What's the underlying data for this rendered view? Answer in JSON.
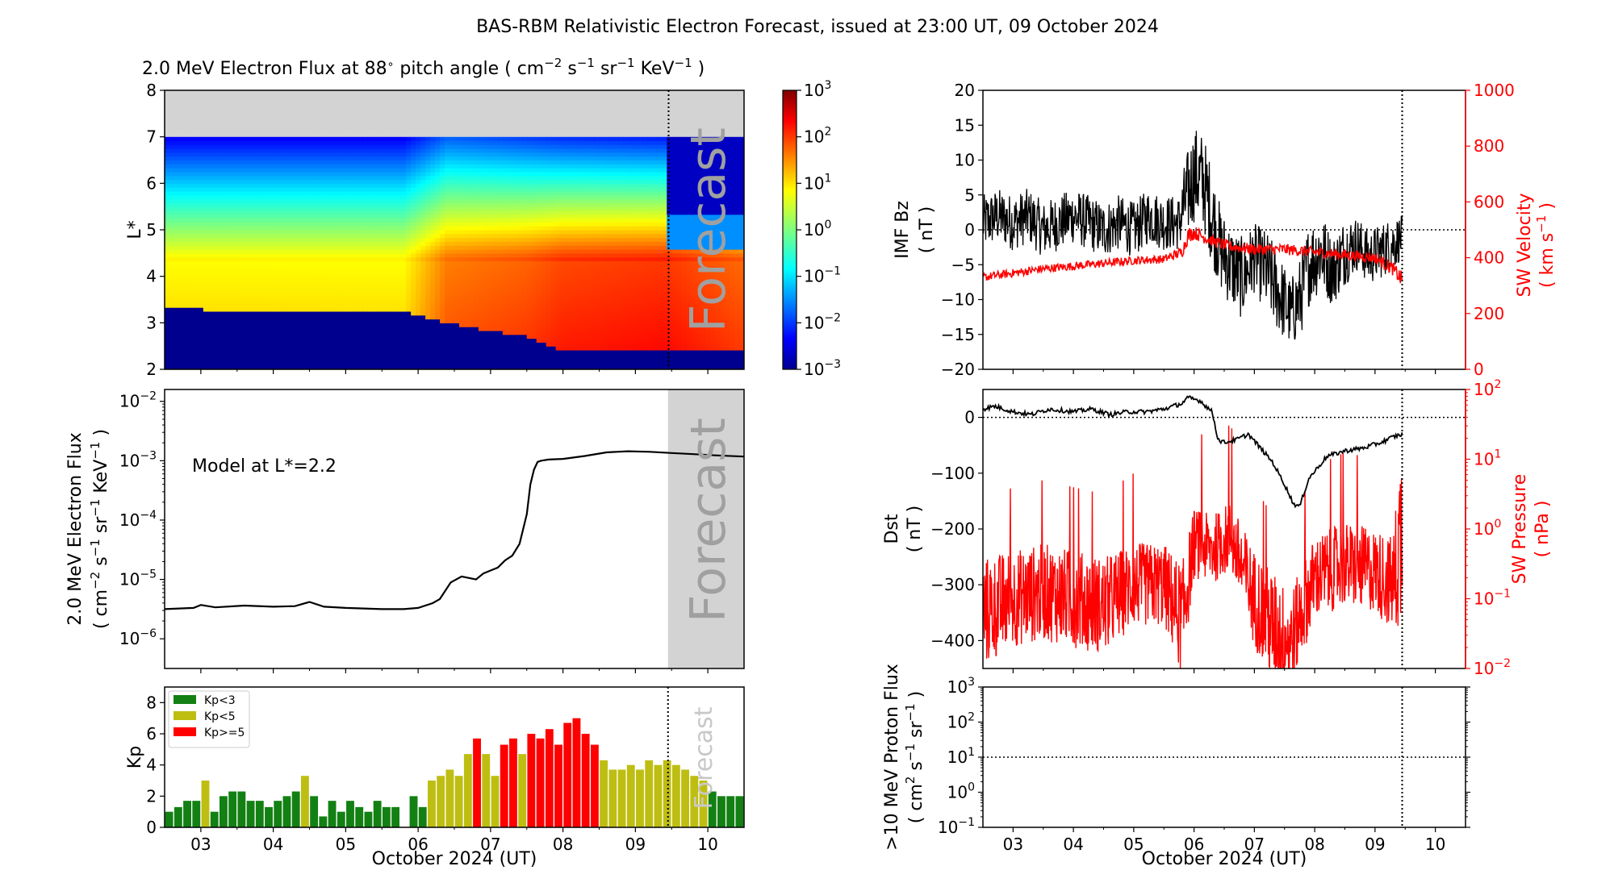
{
  "figure": {
    "title": "BAS-RBM Relativistic Electron Forecast, issued at 23:00 UT, 09 October 2024",
    "forecast_label": "Forecast"
  },
  "chart_data": [
    {
      "id": "flux_spectrogram",
      "type": "heatmap",
      "title_parts": {
        "prefix": "2.0 MeV Electron Flux at 88",
        "deg": "∘",
        "mid": " pitch angle ( cm",
        "e1": "−2",
        "s": " s",
        "e2": "−1",
        "sr": " sr",
        "e3": "−1",
        "kev": " KeV",
        "e4": "−1",
        "suffix": " )"
      },
      "ylabel": "L*",
      "xlim": [
        2.5,
        10.5
      ],
      "ylim": [
        2,
        8
      ],
      "yticks": [
        "2",
        "3",
        "4",
        "5",
        "6",
        "7",
        "8"
      ],
      "xticks": [
        "03",
        "04",
        "05",
        "06",
        "07",
        "08",
        "09",
        "10"
      ],
      "forecast_start": 9.458,
      "colorbar": {
        "label_base": "10",
        "exponents": [
          "3",
          "2",
          "1",
          "0",
          "−1",
          "−2",
          "−3"
        ],
        "min_exp": -3,
        "max_exp": 3
      },
      "data_gap_above_L": 7.0,
      "bands": [
        {
          "day": 2.5,
          "low_edge": 3.3,
          "core_log": 1.0,
          "high_log": -1.6
        },
        {
          "day": 5.8,
          "low_edge": 3.25,
          "core_log": 1.0,
          "high_log": -1.6
        },
        {
          "day": 6.4,
          "low_edge": 3.0,
          "core_log": 1.8,
          "high_log": -1.0
        },
        {
          "day": 7.5,
          "low_edge": 2.7,
          "core_log": 2.0,
          "high_log": -1.2
        },
        {
          "day": 8.0,
          "low_edge": 2.4,
          "core_log": 2.2,
          "high_log": -1.3
        },
        {
          "day": 9.4,
          "low_edge": 2.4,
          "core_log": 2.3,
          "high_log": -1.4
        },
        {
          "day": 10.5,
          "low_edge": 2.4,
          "core_log": 2.0,
          "high_log": -3.0
        }
      ]
    },
    {
      "id": "flux_lstar",
      "type": "line",
      "annotation": "Model at L*=2.2",
      "ylabel_line1_parts": {
        "text": "2.0 MeV Electron Flux"
      },
      "ylabel_line2_parts": {
        "open": "( cm",
        "e1": "−2",
        "s": " s",
        "e2": "−1",
        "sr": " sr",
        "e3": "−1",
        "kev": " KeV",
        "e4": "−1",
        "close": " )"
      },
      "yscale": "log",
      "ylim_exp": [
        -6.5,
        -1.8
      ],
      "ytick_exps": [
        "−6",
        "−5",
        "−4",
        "−3",
        "−2"
      ],
      "ytick_values": [
        -6,
        -5,
        -4,
        -3,
        -2
      ],
      "xlim": [
        2.5,
        10.5
      ],
      "forecast_start": 9.45,
      "x": [
        2.5,
        2.9,
        3.0,
        3.2,
        3.6,
        4.0,
        4.3,
        4.5,
        4.7,
        5.0,
        5.5,
        5.8,
        6.0,
        6.2,
        6.3,
        6.45,
        6.6,
        6.8,
        6.9,
        7.0,
        7.1,
        7.2,
        7.3,
        7.4,
        7.5,
        7.55,
        7.6,
        7.65,
        7.7,
        7.8,
        8.0,
        8.3,
        8.6,
        8.9,
        9.2,
        9.5,
        9.8,
        10.1,
        10.5
      ],
      "y_log": [
        -5.5,
        -5.48,
        -5.43,
        -5.47,
        -5.44,
        -5.46,
        -5.45,
        -5.38,
        -5.46,
        -5.48,
        -5.5,
        -5.5,
        -5.48,
        -5.4,
        -5.33,
        -5.05,
        -4.95,
        -5.0,
        -4.9,
        -4.85,
        -4.8,
        -4.68,
        -4.6,
        -4.4,
        -3.9,
        -3.4,
        -3.15,
        -3.02,
        -3.0,
        -2.98,
        -2.97,
        -2.92,
        -2.86,
        -2.84,
        -2.85,
        -2.87,
        -2.89,
        -2.91,
        -2.93
      ]
    },
    {
      "id": "kp",
      "type": "bar",
      "ylabel": "Kp",
      "ylim": [
        0,
        9
      ],
      "yticks": [
        "0",
        "2",
        "4",
        "6",
        "8"
      ],
      "xlim": [
        2.5,
        10.5
      ],
      "forecast_start": 9.45,
      "bar_width_days": 0.11,
      "legend": [
        {
          "label": "Kp<3",
          "color": "#138013"
        },
        {
          "label": "Kp<5",
          "color": "#bebe12"
        },
        {
          "label": "Kp>=5",
          "color": "#ff0000"
        }
      ],
      "start_day": 2.5625,
      "step_days": 0.125,
      "values": [
        1.0,
        1.3,
        1.7,
        1.7,
        3.0,
        1.0,
        2.0,
        2.3,
        2.3,
        1.7,
        1.7,
        1.3,
        1.7,
        2.0,
        2.3,
        3.3,
        2.0,
        0.7,
        1.7,
        1.0,
        1.7,
        1.3,
        1.0,
        1.7,
        1.3,
        1.3,
        0.0,
        2.0,
        1.3,
        3.0,
        3.3,
        3.7,
        3.3,
        4.7,
        5.7,
        4.7,
        3.3,
        5.3,
        5.7,
        4.7,
        6.0,
        5.7,
        6.3,
        5.3,
        6.7,
        7.0,
        6.0,
        5.3,
        4.3,
        3.7,
        3.7,
        4.0,
        3.7,
        4.3,
        4.0,
        4.3,
        4.0,
        3.7,
        3.3,
        3.0,
        2.3,
        2.0,
        2.0,
        2.0,
        2.0,
        2.0,
        2.0,
        2.0
      ]
    },
    {
      "id": "imf_bz_sw_velocity",
      "type": "line",
      "ylabel_left_lines": [
        "IMF Bz",
        "( nT )"
      ],
      "ylabel_right_line1": "SW Velocity",
      "ylabel_right_parts": {
        "open": "( km s",
        "e": "−1",
        "close": " )"
      },
      "ylim_left": [
        -20,
        20
      ],
      "yticks_left": [
        "−20",
        "−15",
        "−10",
        "−5",
        "0",
        "5",
        "10",
        "15",
        "20"
      ],
      "ylim_right": [
        0,
        1000
      ],
      "yticks_right": [
        "0",
        "200",
        "400",
        "600",
        "800",
        "1000"
      ],
      "xlim": [
        2.5,
        10.5
      ],
      "forecast_start": 9.45,
      "series": [
        {
          "name": "IMF Bz",
          "color": "#000000",
          "axis": "left",
          "days": [
            2.5,
            2.75,
            3.0,
            3.25,
            3.5,
            3.75,
            4.0,
            4.25,
            4.5,
            4.75,
            5.0,
            5.25,
            5.5,
            5.75,
            5.85,
            6.0,
            6.15,
            6.3,
            6.45,
            6.6,
            6.8,
            7.0,
            7.2,
            7.4,
            7.6,
            7.75,
            7.9,
            8.1,
            8.3,
            8.5,
            8.7,
            8.9,
            9.1,
            9.3,
            9.45
          ],
          "mean": [
            1,
            2,
            1,
            2,
            0,
            1,
            2,
            1,
            0,
            1,
            0,
            2,
            1,
            1,
            4,
            8,
            7,
            2,
            -3,
            -5,
            -7,
            -4,
            -6,
            -9,
            -12,
            -10,
            -5,
            -3,
            -6,
            -3,
            -2,
            -4,
            -3,
            -2,
            -1
          ],
          "spread": [
            4,
            4,
            4,
            4,
            4,
            4,
            4,
            4,
            4,
            4,
            4,
            4,
            4,
            4,
            6,
            7,
            7,
            7,
            6,
            6,
            6,
            5,
            6,
            6,
            5,
            6,
            6,
            6,
            5,
            5,
            4,
            4,
            4,
            4,
            3
          ]
        },
        {
          "name": "SW Velocity",
          "color": "#ff0000",
          "axis": "right",
          "days": [
            2.5,
            3.0,
            3.5,
            4.0,
            4.5,
            5.0,
            5.5,
            5.8,
            5.9,
            6.0,
            6.3,
            6.6,
            7.0,
            7.5,
            8.0,
            8.5,
            9.0,
            9.3,
            9.45
          ],
          "mean": [
            330,
            345,
            360,
            370,
            380,
            390,
            395,
            420,
            480,
            490,
            460,
            440,
            430,
            430,
            420,
            410,
            400,
            360,
            320
          ],
          "spread": [
            15,
            15,
            15,
            15,
            15,
            15,
            15,
            20,
            30,
            25,
            20,
            20,
            20,
            20,
            20,
            20,
            20,
            25,
            30
          ]
        }
      ]
    },
    {
      "id": "dst_sw_pressure",
      "type": "line",
      "ylabel_left_lines": [
        "Dst",
        "( nT )"
      ],
      "ylabel_right_lines": [
        "SW Pressure",
        "( nPa )"
      ],
      "ylim_left": [
        -450,
        50
      ],
      "yticks_left": [
        "0",
        "−100",
        "−200",
        "−300",
        "−400"
      ],
      "ylim_right_exp": [
        -2,
        2
      ],
      "ytick_right_exps": [
        "2",
        "1",
        "0",
        "−1",
        "−2"
      ],
      "xlim": [
        2.5,
        10.5
      ],
      "forecast_start": 9.45,
      "series": [
        {
          "name": "Dst",
          "color": "#000000",
          "axis": "left",
          "days": [
            2.5,
            2.7,
            3.0,
            3.3,
            3.6,
            4.0,
            4.3,
            4.6,
            4.9,
            5.2,
            5.5,
            5.8,
            5.9,
            6.1,
            6.3,
            6.4,
            6.5,
            6.7,
            6.9,
            7.1,
            7.3,
            7.5,
            7.65,
            7.75,
            7.9,
            8.2,
            8.5,
            8.8,
            9.1,
            9.3,
            9.45
          ],
          "values": [
            15,
            20,
            10,
            5,
            15,
            10,
            15,
            5,
            10,
            10,
            15,
            25,
            35,
            30,
            10,
            -40,
            -45,
            -40,
            -30,
            -55,
            -80,
            -120,
            -155,
            -160,
            -110,
            -70,
            -60,
            -55,
            -45,
            -35,
            -30
          ]
        },
        {
          "name": "SW Pressure",
          "color": "#ff0000",
          "axis": "right",
          "days": [
            2.5,
            3.0,
            3.5,
            4.0,
            4.5,
            5.0,
            5.5,
            5.8,
            6.0,
            6.3,
            6.6,
            7.0,
            7.3,
            7.6,
            8.0,
            8.5,
            9.0,
            9.3,
            9.45
          ],
          "log_mean": [
            -1.2,
            -1.0,
            -0.9,
            -1.0,
            -1.1,
            -0.8,
            -0.8,
            -1.3,
            -0.2,
            -0.3,
            -0.1,
            -1.0,
            -1.4,
            -1.6,
            -0.7,
            -0.5,
            -0.6,
            -0.8,
            0.0
          ],
          "log_spread": [
            0.8,
            0.7,
            0.7,
            0.7,
            0.7,
            0.6,
            0.6,
            0.8,
            0.5,
            0.5,
            0.5,
            0.7,
            0.8,
            0.7,
            0.6,
            0.6,
            0.6,
            0.7,
            1.5
          ]
        }
      ]
    },
    {
      "id": "proton_flux",
      "type": "line",
      "ylabel_line1": ">10 MeV Proton Flux",
      "ylabel_line2_parts": {
        "open": "( cm",
        "e1": "2",
        "s": " s",
        "e2": "−1",
        "sr": " sr",
        "e3": "−1",
        "close": " )"
      },
      "ylim_exp": [
        -1,
        3
      ],
      "ytick_exps": [
        "3",
        "2",
        "1",
        "0",
        "−1"
      ],
      "threshold_exp": 1,
      "xlim": [
        2.5,
        10.5
      ],
      "forecast_start": 9.45,
      "xlabel": "October 2024 (UT)",
      "xticks": [
        "03",
        "04",
        "05",
        "06",
        "07",
        "08",
        "09",
        "10"
      ]
    }
  ],
  "left_xlabel": "October 2024 (UT)"
}
